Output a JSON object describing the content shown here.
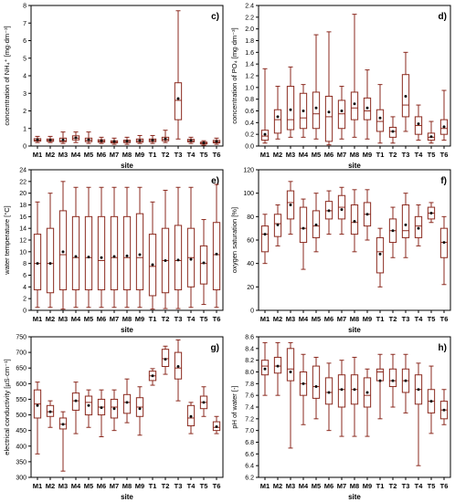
{
  "chart_data": [
    {
      "type": "box",
      "panel_label": "c)",
      "xlabel": "site",
      "ylabel": "concentration of NH₄⁺ [mg·dm⁻³]",
      "ylim": [
        0,
        8
      ],
      "yticks": [
        0,
        1,
        2,
        3,
        4,
        5,
        6,
        7,
        8
      ],
      "categories": [
        "M1",
        "M2",
        "M3",
        "M4",
        "M5",
        "M6",
        "M7",
        "M8",
        "M9",
        "T1",
        "T2",
        "T3",
        "T4",
        "T5",
        "T6"
      ],
      "boxes": [
        {
          "min": 0.2,
          "q1": 0.28,
          "median": 0.33,
          "q3": 0.42,
          "max": 0.55,
          "mean": 0.36
        },
        {
          "min": 0.2,
          "q1": 0.27,
          "median": 0.32,
          "q3": 0.4,
          "max": 0.55,
          "mean": 0.34
        },
        {
          "min": 0.15,
          "q1": 0.25,
          "median": 0.3,
          "q3": 0.45,
          "max": 0.8,
          "mean": 0.35
        },
        {
          "min": 0.2,
          "q1": 0.35,
          "median": 0.45,
          "q3": 0.58,
          "max": 0.8,
          "mean": 0.47
        },
        {
          "min": 0.15,
          "q1": 0.25,
          "median": 0.33,
          "q3": 0.45,
          "max": 0.8,
          "mean": 0.36
        },
        {
          "min": 0.15,
          "q1": 0.22,
          "median": 0.28,
          "q3": 0.36,
          "max": 0.5,
          "mean": 0.3
        },
        {
          "min": 0.1,
          "q1": 0.18,
          "median": 0.24,
          "q3": 0.3,
          "max": 0.45,
          "mean": 0.26
        },
        {
          "min": 0.1,
          "q1": 0.2,
          "median": 0.26,
          "q3": 0.33,
          "max": 0.5,
          "mean": 0.28
        },
        {
          "min": 0.15,
          "q1": 0.22,
          "median": 0.3,
          "q3": 0.4,
          "max": 0.6,
          "mean": 0.31
        },
        {
          "min": 0.15,
          "q1": 0.25,
          "median": 0.32,
          "q3": 0.4,
          "max": 0.6,
          "mean": 0.33
        },
        {
          "min": 0.2,
          "q1": 0.3,
          "median": 0.38,
          "q3": 0.5,
          "max": 0.9,
          "mean": 0.4
        },
        {
          "min": 0.4,
          "q1": 1.5,
          "median": 2.6,
          "q3": 3.6,
          "max": 7.7,
          "mean": 2.7
        },
        {
          "min": 0.15,
          "q1": 0.24,
          "median": 0.3,
          "q3": 0.38,
          "max": 0.5,
          "mean": 0.31
        },
        {
          "min": 0.05,
          "q1": 0.12,
          "median": 0.17,
          "q3": 0.22,
          "max": 0.3,
          "mean": 0.18
        },
        {
          "min": 0.1,
          "q1": 0.18,
          "median": 0.24,
          "q3": 0.32,
          "max": 0.45,
          "mean": 0.26
        }
      ]
    },
    {
      "type": "box",
      "panel_label": "d)",
      "xlabel": "site",
      "ylabel": "concentration of PO₄ [mg·dm⁻³]",
      "ylim": [
        0,
        2.4
      ],
      "yticks": [
        0,
        0.2,
        0.4,
        0.6,
        0.8,
        1.0,
        1.2,
        1.4,
        1.6,
        1.8,
        2.0,
        2.2,
        2.4
      ],
      "ytick_labels": [
        "0.0",
        "0.2",
        "0.4",
        "0.6",
        "0.8",
        "1.0",
        "1.2",
        "1.4",
        "1.6",
        "1.8",
        "2.0",
        "2.2",
        "2.4"
      ],
      "categories": [
        "M1",
        "M2",
        "M3",
        "M4",
        "M5",
        "M6",
        "M7",
        "M8",
        "M9",
        "T1",
        "T2",
        "T3",
        "T4",
        "T5",
        "T6"
      ],
      "boxes": [
        {
          "min": 0.05,
          "q1": 0.1,
          "median": 0.17,
          "q3": 0.27,
          "max": 1.32,
          "mean": 0.2
        },
        {
          "min": 0.12,
          "q1": 0.22,
          "median": 0.45,
          "q3": 0.62,
          "max": 1.02,
          "mean": 0.5
        },
        {
          "min": 0.15,
          "q1": 0.28,
          "median": 0.45,
          "q3": 1.02,
          "max": 1.35,
          "mean": 0.62
        },
        {
          "min": 0.15,
          "q1": 0.3,
          "median": 0.48,
          "q3": 0.9,
          "max": 1.05,
          "mean": 0.6
        },
        {
          "min": 0.12,
          "q1": 0.3,
          "median": 0.55,
          "q3": 0.92,
          "max": 1.9,
          "mean": 0.65
        },
        {
          "min": 0.02,
          "q1": 0.08,
          "median": 0.5,
          "q3": 0.85,
          "max": 1.95,
          "mean": 0.58
        },
        {
          "min": 0.12,
          "q1": 0.3,
          "median": 0.55,
          "q3": 0.78,
          "max": 1.02,
          "mean": 0.6
        },
        {
          "min": 0.15,
          "q1": 0.45,
          "median": 0.65,
          "q3": 0.92,
          "max": 2.25,
          "mean": 0.72
        },
        {
          "min": 0.12,
          "q1": 0.45,
          "median": 0.6,
          "q3": 0.82,
          "max": 1.3,
          "mean": 0.65
        },
        {
          "min": 0.05,
          "q1": 0.25,
          "median": 0.42,
          "q3": 0.62,
          "max": 1.05,
          "mean": 0.48
        },
        {
          "min": 0.05,
          "q1": 0.15,
          "median": 0.25,
          "q3": 0.32,
          "max": 0.5,
          "mean": 0.25
        },
        {
          "min": 0.25,
          "q1": 0.5,
          "median": 0.7,
          "q3": 1.22,
          "max": 1.6,
          "mean": 0.85
        },
        {
          "min": 0.1,
          "q1": 0.2,
          "median": 0.35,
          "q3": 0.5,
          "max": 0.7,
          "mean": 0.38
        },
        {
          "min": 0.05,
          "q1": 0.1,
          "median": 0.15,
          "q3": 0.22,
          "max": 0.42,
          "mean": 0.16
        },
        {
          "min": 0.1,
          "q1": 0.2,
          "median": 0.3,
          "q3": 0.45,
          "max": 0.95,
          "mean": 0.33
        }
      ]
    },
    {
      "type": "box",
      "panel_label": "e)",
      "xlabel": "site",
      "ylabel": "water temperature [°C]",
      "ylim": [
        0,
        24
      ],
      "yticks": [
        0,
        2,
        4,
        6,
        8,
        10,
        12,
        14,
        16,
        18,
        20,
        22,
        24
      ],
      "categories": [
        "M1",
        "M2",
        "M3",
        "M4",
        "M5",
        "M6",
        "M7",
        "M8",
        "M9",
        "T1",
        "T2",
        "T3",
        "T4",
        "T5",
        "T6"
      ],
      "boxes": [
        {
          "min": 0.5,
          "q1": 3.5,
          "median": 8,
          "q3": 13,
          "max": 18.5,
          "mean": 8
        },
        {
          "min": 0.5,
          "q1": 3,
          "median": 8,
          "q3": 14,
          "max": 20,
          "mean": 8
        },
        {
          "min": 0.2,
          "q1": 3.5,
          "median": 9.5,
          "q3": 17,
          "max": 22,
          "mean": 10
        },
        {
          "min": 0.5,
          "q1": 3.5,
          "median": 9,
          "q3": 16,
          "max": 21,
          "mean": 9.2
        },
        {
          "min": 0.5,
          "q1": 3.5,
          "median": 9,
          "q3": 16,
          "max": 21,
          "mean": 9.1
        },
        {
          "min": 0.5,
          "q1": 3.5,
          "median": 8.5,
          "q3": 16,
          "max": 21,
          "mean": 9
        },
        {
          "min": 0.5,
          "q1": 3.5,
          "median": 9,
          "q3": 16,
          "max": 21,
          "mean": 9.2
        },
        {
          "min": 0.5,
          "q1": 3.5,
          "median": 9,
          "q3": 16,
          "max": 21,
          "mean": 9.3
        },
        {
          "min": 0.5,
          "q1": 3.5,
          "median": 9,
          "q3": 16.5,
          "max": 21,
          "mean": 9.5
        },
        {
          "min": 0.2,
          "q1": 2.5,
          "median": 7.5,
          "q3": 13,
          "max": 18.5,
          "mean": 7.8
        },
        {
          "min": 0.3,
          "q1": 3,
          "median": 8.5,
          "q3": 14,
          "max": 20.5,
          "mean": 8.5
        },
        {
          "min": 0.3,
          "q1": 3.5,
          "median": 8.5,
          "q3": 14.5,
          "max": 21,
          "mean": 8.6
        },
        {
          "min": 0.5,
          "q1": 4,
          "median": 9,
          "q3": 14,
          "max": 21,
          "mean": 8.7
        },
        {
          "min": 1,
          "q1": 4.5,
          "median": 8,
          "q3": 11,
          "max": 15.5,
          "mean": 8.1
        },
        {
          "min": 0.5,
          "q1": 3.5,
          "median": 9.5,
          "q3": 15,
          "max": 21.5,
          "mean": 9.6
        }
      ]
    },
    {
      "type": "box",
      "panel_label": "f)",
      "xlabel": "site",
      "ylabel": "oxygen saturation [%]",
      "ylim": [
        0,
        120
      ],
      "yticks": [
        0,
        20,
        40,
        60,
        80,
        100,
        120
      ],
      "categories": [
        "M1",
        "M2",
        "M3",
        "M4",
        "M5",
        "M6",
        "M7",
        "M8",
        "M9",
        "T1",
        "T2",
        "T3",
        "T4",
        "T5",
        "T6"
      ],
      "boxes": [
        {
          "min": 40,
          "q1": 50,
          "median": 65,
          "q3": 72,
          "max": 82,
          "mean": 65
        },
        {
          "min": 55,
          "q1": 63,
          "median": 74,
          "q3": 82,
          "max": 90,
          "mean": 73
        },
        {
          "min": 65,
          "q1": 78,
          "median": 92,
          "q3": 102,
          "max": 110,
          "mean": 90
        },
        {
          "min": 35,
          "q1": 58,
          "median": 70,
          "q3": 88,
          "max": 95,
          "mean": 70
        },
        {
          "min": 50,
          "q1": 62,
          "median": 72,
          "q3": 85,
          "max": 100,
          "mean": 73
        },
        {
          "min": 65,
          "q1": 78,
          "median": 85,
          "q3": 93,
          "max": 102,
          "mean": 85
        },
        {
          "min": 65,
          "q1": 78,
          "median": 88,
          "q3": 98,
          "max": 105,
          "mean": 86
        },
        {
          "min": 50,
          "q1": 65,
          "median": 75,
          "q3": 90,
          "max": 103,
          "mean": 76
        },
        {
          "min": 60,
          "q1": 72,
          "median": 82,
          "q3": 92,
          "max": 103,
          "mean": 82
        },
        {
          "min": 20,
          "q1": 32,
          "median": 50,
          "q3": 62,
          "max": 70,
          "mean": 48
        },
        {
          "min": 45,
          "q1": 58,
          "median": 68,
          "q3": 78,
          "max": 88,
          "mean": 68
        },
        {
          "min": 45,
          "q1": 62,
          "median": 68,
          "q3": 90,
          "max": 100,
          "mean": 73
        },
        {
          "min": 55,
          "q1": 62,
          "median": 72,
          "q3": 80,
          "max": 90,
          "mean": 70
        },
        {
          "min": 75,
          "q1": 78,
          "median": 83,
          "q3": 88,
          "max": 92,
          "mean": 83
        },
        {
          "min": 22,
          "q1": 45,
          "median": 58,
          "q3": 70,
          "max": 80,
          "mean": 58
        }
      ]
    },
    {
      "type": "box",
      "panel_label": "g)",
      "xlabel": "site",
      "ylabel": "electrical conductivity [µS·cm⁻¹]",
      "ylim": [
        300,
        750
      ],
      "yticks": [
        300,
        350,
        400,
        450,
        500,
        550,
        600,
        650,
        700,
        750
      ],
      "categories": [
        "M1",
        "M2",
        "M3",
        "M4",
        "M5",
        "M6",
        "M7",
        "M8",
        "M9",
        "T1",
        "T2",
        "T3",
        "T4",
        "T5",
        "T6"
      ],
      "boxes": [
        {
          "min": 375,
          "q1": 490,
          "median": 535,
          "q3": 580,
          "max": 605,
          "mean": 530
        },
        {
          "min": 460,
          "q1": 495,
          "median": 510,
          "q3": 530,
          "max": 545,
          "mean": 510
        },
        {
          "min": 320,
          "q1": 455,
          "median": 470,
          "q3": 490,
          "max": 510,
          "mean": 470
        },
        {
          "min": 440,
          "q1": 515,
          "median": 545,
          "q3": 570,
          "max": 605,
          "mean": 545
        },
        {
          "min": 460,
          "q1": 500,
          "median": 540,
          "q3": 560,
          "max": 580,
          "mean": 530
        },
        {
          "min": 430,
          "q1": 500,
          "median": 525,
          "q3": 550,
          "max": 580,
          "mean": 523
        },
        {
          "min": 450,
          "q1": 490,
          "median": 525,
          "q3": 550,
          "max": 580,
          "mean": 520
        },
        {
          "min": 475,
          "q1": 505,
          "median": 540,
          "q3": 565,
          "max": 615,
          "mean": 540
        },
        {
          "min": 435,
          "q1": 495,
          "median": 525,
          "q3": 555,
          "max": 590,
          "mean": 520
        },
        {
          "min": 595,
          "q1": 610,
          "median": 625,
          "q3": 640,
          "max": 648,
          "mean": 625
        },
        {
          "min": 630,
          "q1": 655,
          "median": 680,
          "q3": 710,
          "max": 720,
          "mean": 678
        },
        {
          "min": 545,
          "q1": 615,
          "median": 650,
          "q3": 700,
          "max": 740,
          "mean": 655
        },
        {
          "min": 440,
          "q1": 465,
          "median": 490,
          "q3": 530,
          "max": 540,
          "mean": 495
        },
        {
          "min": 495,
          "q1": 520,
          "median": 540,
          "q3": 560,
          "max": 590,
          "mean": 540
        },
        {
          "min": 440,
          "q1": 450,
          "median": 460,
          "q3": 478,
          "max": 495,
          "mean": 462
        }
      ]
    },
    {
      "type": "box",
      "panel_label": "h)",
      "xlabel": "site",
      "ylabel": "pH of water [-]",
      "ylim": [
        6.2,
        8.6
      ],
      "yticks": [
        6.2,
        6.4,
        6.6,
        6.8,
        7.0,
        7.2,
        7.4,
        7.6,
        7.8,
        8.0,
        8.2,
        8.4,
        8.6
      ],
      "ytick_labels": [
        "6.2",
        "6.4",
        "6.6",
        "6.8",
        "7.0",
        "7.2",
        "7.4",
        "7.6",
        "7.8",
        "8.0",
        "8.2",
        "8.4",
        "8.6"
      ],
      "categories": [
        "M1",
        "M2",
        "M3",
        "M4",
        "M5",
        "M6",
        "M7",
        "M8",
        "M9",
        "T1",
        "T2",
        "T3",
        "T4",
        "T5",
        "T6"
      ],
      "boxes": [
        {
          "min": 7.6,
          "q1": 7.95,
          "median": 8.1,
          "q3": 8.2,
          "max": 8.5,
          "mean": 8.05
        },
        {
          "min": 7.6,
          "q1": 7.98,
          "median": 8.1,
          "q3": 8.25,
          "max": 8.5,
          "mean": 8.1
        },
        {
          "min": 6.7,
          "q1": 7.85,
          "median": 8.05,
          "q3": 8.4,
          "max": 8.5,
          "mean": 8.0
        },
        {
          "min": 7.1,
          "q1": 7.6,
          "median": 7.8,
          "q3": 8.0,
          "max": 8.3,
          "mean": 7.8
        },
        {
          "min": 7.2,
          "q1": 7.55,
          "median": 7.75,
          "q3": 8.1,
          "max": 8.25,
          "mean": 7.75
        },
        {
          "min": 7.0,
          "q1": 7.45,
          "median": 7.65,
          "q3": 7.9,
          "max": 8.15,
          "mean": 7.65
        },
        {
          "min": 6.9,
          "q1": 7.4,
          "median": 7.7,
          "q3": 7.95,
          "max": 8.2,
          "mean": 7.7
        },
        {
          "min": 6.9,
          "q1": 7.45,
          "median": 7.7,
          "q3": 7.95,
          "max": 8.25,
          "mean": 7.7
        },
        {
          "min": 6.9,
          "q1": 7.4,
          "median": 7.6,
          "q3": 7.9,
          "max": 8.05,
          "mean": 7.65
        },
        {
          "min": 7.2,
          "q1": 7.85,
          "median": 8.0,
          "q3": 8.05,
          "max": 8.3,
          "mean": 7.85
        },
        {
          "min": 7.4,
          "q1": 7.75,
          "median": 7.85,
          "q3": 8.05,
          "max": 8.3,
          "mean": 7.85
        },
        {
          "min": 7.3,
          "q1": 7.65,
          "median": 7.85,
          "q3": 8.05,
          "max": 8.3,
          "mean": 7.85
        },
        {
          "min": 6.4,
          "q1": 7.45,
          "median": 7.7,
          "q3": 7.95,
          "max": 8.15,
          "mean": 7.7
        },
        {
          "min": 6.95,
          "q1": 7.3,
          "median": 7.5,
          "q3": 7.7,
          "max": 8.1,
          "mean": 7.5
        },
        {
          "min": 7.1,
          "q1": 7.2,
          "median": 7.35,
          "q3": 7.5,
          "max": 7.7,
          "mean": 7.35
        }
      ]
    }
  ]
}
